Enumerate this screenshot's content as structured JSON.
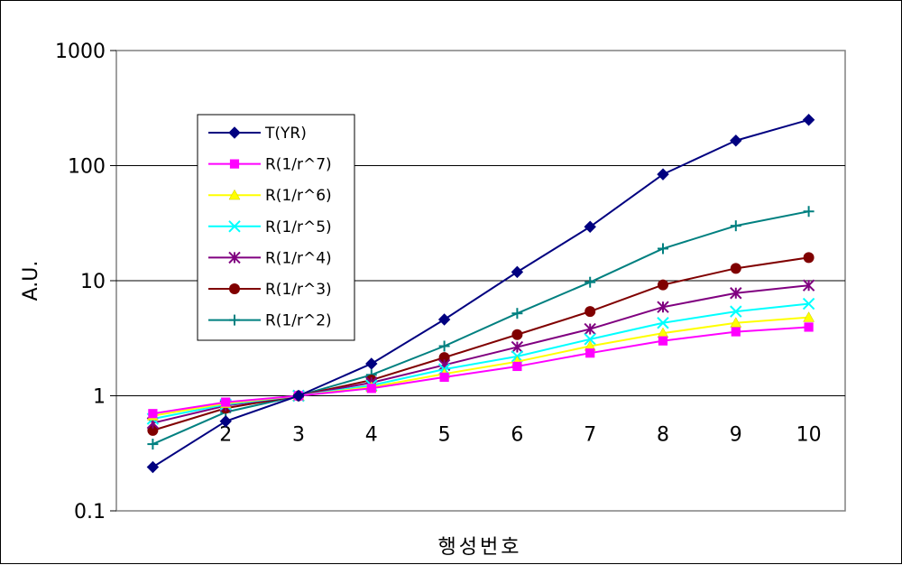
{
  "chart_data": {
    "type": "line",
    "x": [
      1,
      2,
      3,
      4,
      5,
      6,
      7,
      8,
      9,
      10
    ],
    "x_tick_labels": [
      "2",
      "3",
      "4",
      "5",
      "6",
      "7",
      "8",
      "9",
      "10"
    ],
    "y_scale": "log",
    "ylim": [
      0.1,
      1000
    ],
    "y_tick_labels": [
      "1000",
      "100",
      "10",
      "1",
      "0.1"
    ],
    "ylabel": "A.U.",
    "xlabel": "행성번호",
    "grid": "horizontal",
    "legend_position": "upper-left",
    "series": [
      {
        "name": "T(YR)",
        "color": "#000080",
        "marker": "diamond",
        "values": [
          0.24,
          0.6,
          1,
          1.9,
          4.6,
          11.9,
          29.4,
          84,
          165,
          250
        ]
      },
      {
        "name": "R(1/r^7)",
        "color": "#ff00ff",
        "marker": "square",
        "values": [
          0.7,
          0.88,
          1,
          1.16,
          1.45,
          1.8,
          2.35,
          3.0,
          3.6,
          3.95
        ]
      },
      {
        "name": "R(1/r^6)",
        "color": "#ffff00",
        "marker": "triangle",
        "values": [
          0.67,
          0.86,
          1,
          1.19,
          1.55,
          1.98,
          2.7,
          3.5,
          4.3,
          4.8
        ]
      },
      {
        "name": "R(1/r^5)",
        "color": "#00ffff",
        "marker": "x",
        "values": [
          0.63,
          0.84,
          1,
          1.23,
          1.7,
          2.2,
          3.1,
          4.3,
          5.4,
          6.3
        ]
      },
      {
        "name": "R(1/r^4)",
        "color": "#800080",
        "marker": "asterisk",
        "values": [
          0.58,
          0.82,
          1,
          1.3,
          1.85,
          2.65,
          3.8,
          5.9,
          7.8,
          9.1
        ]
      },
      {
        "name": "R(1/r^3)",
        "color": "#800000",
        "marker": "circle",
        "values": [
          0.5,
          0.78,
          1,
          1.37,
          2.15,
          3.4,
          5.4,
          9.2,
          12.8,
          15.9
        ]
      },
      {
        "name": "R(1/r^2)",
        "color": "#008080",
        "marker": "plus",
        "values": [
          0.38,
          0.72,
          1,
          1.52,
          2.7,
          5.2,
          9.7,
          19,
          30,
          40
        ]
      }
    ]
  }
}
